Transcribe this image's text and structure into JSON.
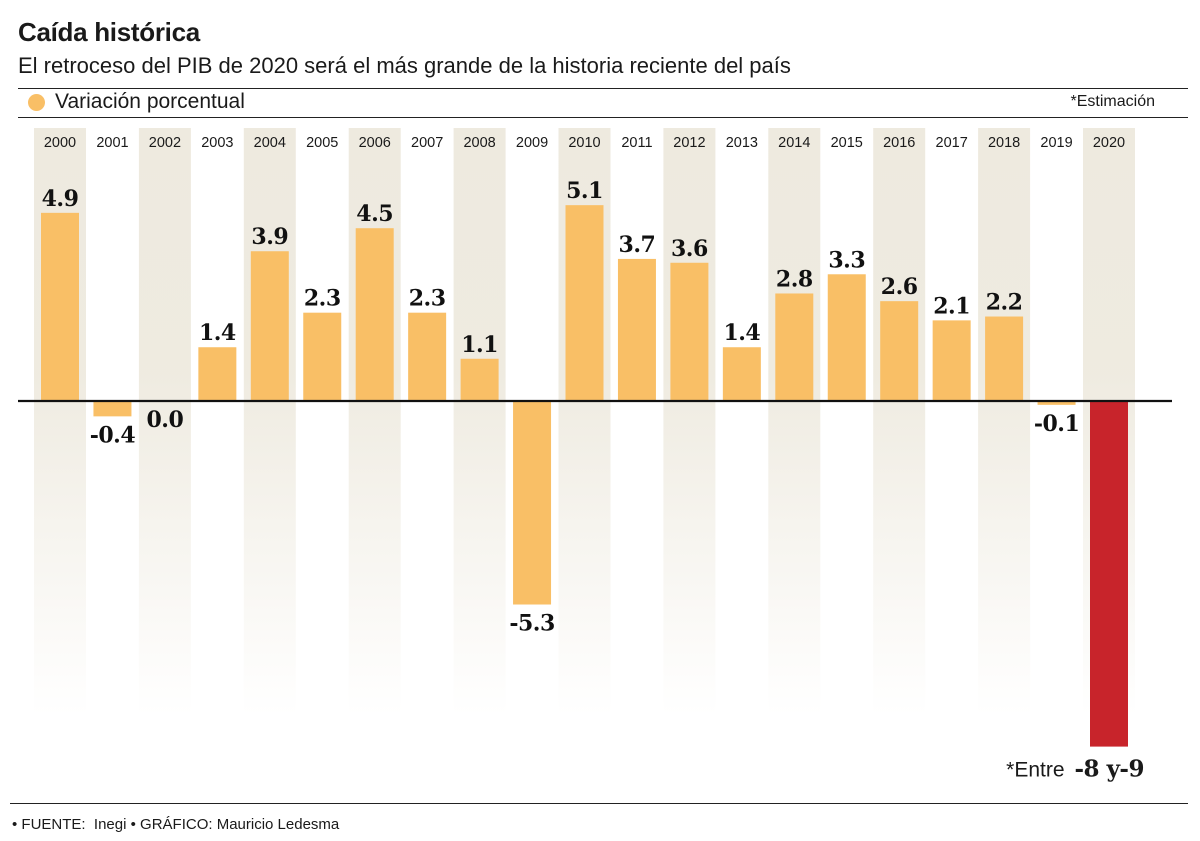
{
  "chart_data": {
    "type": "bar",
    "title": "Caída histórica",
    "subtitle": "El retroceso del PIB de 2020 será el más grande de la historia reciente del país",
    "legend": [
      {
        "label": "Variación porcentual",
        "color": "#F9BF66"
      }
    ],
    "note": "*Estimación",
    "categories": [
      "2000",
      "2001",
      "2002",
      "2003",
      "2004",
      "2005",
      "2006",
      "2007",
      "2008",
      "2009",
      "2010",
      "2011",
      "2012",
      "2013",
      "2014",
      "2015",
      "2016",
      "2017",
      "2018",
      "2019",
      "2020"
    ],
    "values": [
      4.9,
      -0.4,
      0.0,
      1.4,
      3.9,
      2.3,
      4.5,
      2.3,
      1.1,
      -5.3,
      5.1,
      3.7,
      3.6,
      1.4,
      2.8,
      3.3,
      2.6,
      2.1,
      2.2,
      -0.1,
      -9
    ],
    "labels": [
      "4.9",
      "-0.4",
      "0.0",
      "1.4",
      "3.9",
      "2.3",
      "4.5",
      "2.3",
      "1.1",
      "-5.3",
      "5.1",
      "3.7",
      "3.6",
      "1.4",
      "2.8",
      "3.3",
      "2.6",
      "2.1",
      "2.2",
      "-0.1",
      "-8 y-9"
    ],
    "annotation": {
      "category": "2020",
      "prefix": "*Entre",
      "range": [
        -8,
        -9
      ]
    },
    "bar_color": "#F9BF66",
    "highlight": {
      "category": "2020",
      "color": "#C8242B"
    },
    "grid": false
  },
  "footer": {
    "text": "• FUENTE:  Inegi • GRÁFICO: Mauricio Ledesma"
  }
}
